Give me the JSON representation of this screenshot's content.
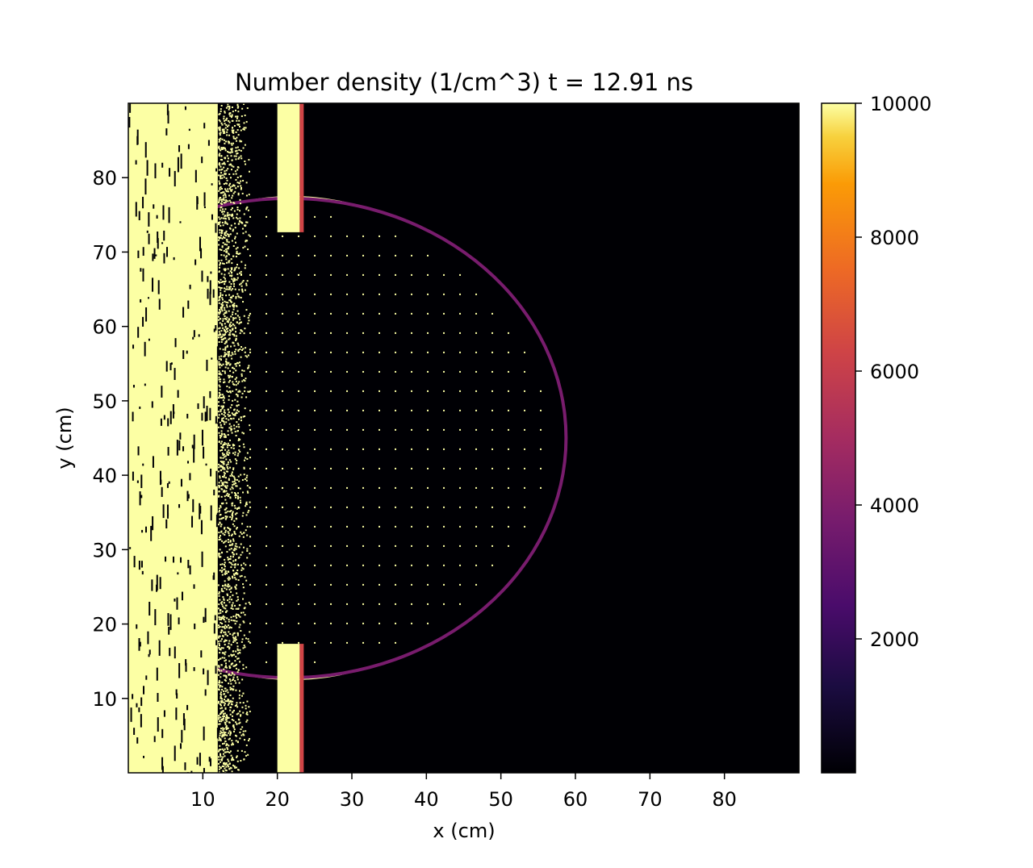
{
  "chart_data": {
    "type": "heatmap",
    "title": "Number density (1/cm^3)  t = 12.91 ns",
    "xlabel": "x (cm)",
    "ylabel": "y (cm)",
    "xlim": [
      0,
      90
    ],
    "ylim": [
      0,
      90
    ],
    "x_ticks": [
      {
        "value": 10,
        "label": "10"
      },
      {
        "value": 20,
        "label": "20"
      },
      {
        "value": 30,
        "label": "30"
      },
      {
        "value": 40,
        "label": "40"
      },
      {
        "value": 50,
        "label": "50"
      },
      {
        "value": 60,
        "label": "60"
      },
      {
        "value": 70,
        "label": "70"
      },
      {
        "value": 80,
        "label": "80"
      }
    ],
    "y_ticks": [
      {
        "value": 10,
        "label": "10"
      },
      {
        "value": 20,
        "label": "20"
      },
      {
        "value": 30,
        "label": "30"
      },
      {
        "value": 40,
        "label": "40"
      },
      {
        "value": 50,
        "label": "50"
      },
      {
        "value": 60,
        "label": "60"
      },
      {
        "value": 70,
        "label": "70"
      },
      {
        "value": 80,
        "label": "80"
      }
    ],
    "colorbar": {
      "colormap": "inferno",
      "range": [
        0,
        10000
      ],
      "ticks": [
        {
          "value": 2000,
          "label": "2000"
        },
        {
          "value": 4000,
          "label": "4000"
        },
        {
          "value": 6000,
          "label": "6000"
        },
        {
          "value": 8000,
          "label": "8000"
        },
        {
          "value": 10000,
          "label": "10000"
        }
      ]
    },
    "background_value": 0,
    "saturated_value": 10000,
    "features": {
      "dense_left_region": {
        "x_range": [
          0,
          23
        ],
        "value": 10000
      },
      "cavity_center": [
        27,
        45
      ],
      "cavity_flat_left_edge_x": 13,
      "cavity_y_range": [
        13,
        77
      ],
      "outer_shell_center": [
        22,
        45
      ],
      "outer_shell_radius": 32.5,
      "shell_value": 10000
    },
    "grid": false,
    "legend": "none"
  }
}
